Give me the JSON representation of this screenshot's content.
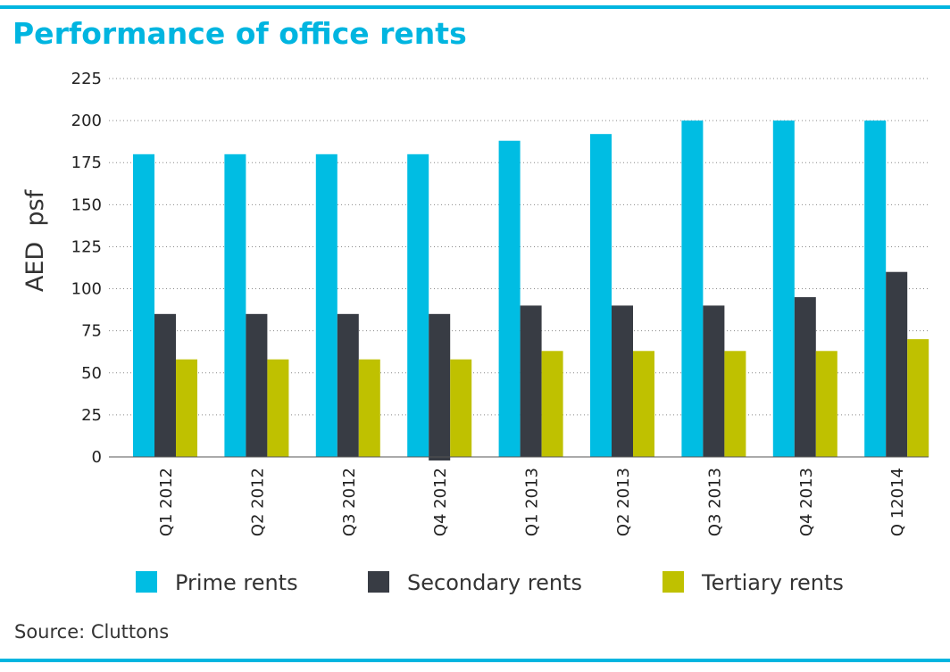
{
  "header": {
    "title": "Performance of office rents"
  },
  "footer": {
    "source": "Source: Cluttons"
  },
  "colors": {
    "accent": "#00b5e0",
    "prime": "#00bde3",
    "secondary": "#383c44",
    "tertiary": "#bfc100"
  },
  "chart_data": {
    "type": "bar",
    "title": "Performance of office rents",
    "ylabel": "AED  psf",
    "xlabel": "",
    "ylim": [
      0,
      225
    ],
    "yticks": [
      0,
      25,
      50,
      75,
      100,
      125,
      150,
      175,
      200,
      225
    ],
    "grid": "horizontal dotted",
    "legend": "bottom",
    "categories": [
      "Q1 2012",
      "Q2 2012",
      "Q3 2012",
      "Q4 2012",
      "Q1 2013",
      "Q2 2013",
      "Q3 2013",
      "Q4 2013",
      "Q 12014"
    ],
    "series": [
      {
        "name": "Prime rents",
        "color": "#00bde3",
        "values": [
          180,
          180,
          180,
          180,
          188,
          192,
          200,
          200,
          200
        ]
      },
      {
        "name": "Secondary rents",
        "color": "#383c44",
        "values": [
          85,
          85,
          85,
          85,
          90,
          90,
          90,
          95,
          110
        ]
      },
      {
        "name": "Tertiary rents",
        "color": "#bfc100",
        "values": [
          58,
          58,
          58,
          58,
          63,
          63,
          63,
          63,
          70
        ]
      }
    ]
  }
}
